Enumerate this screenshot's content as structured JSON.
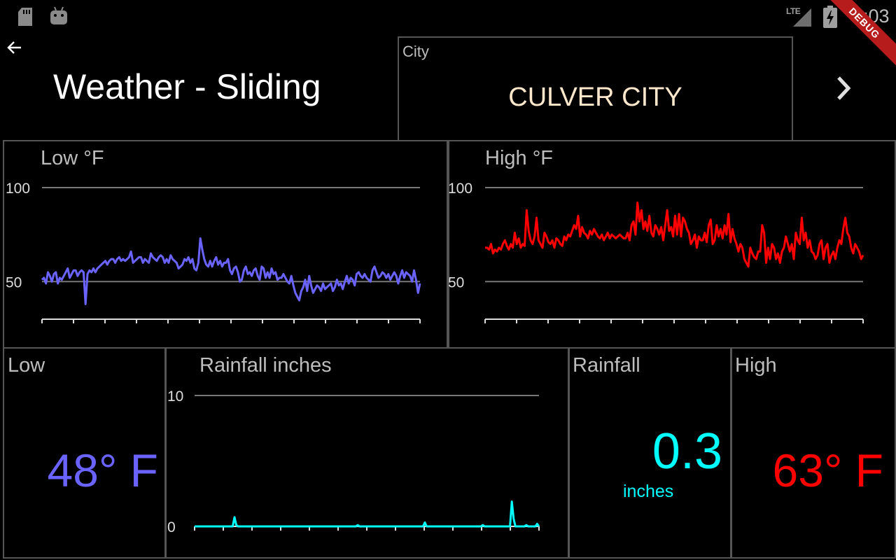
{
  "status_bar": {
    "time": "4:03",
    "network": "LTE",
    "debug": "DEBUG",
    "icons": [
      "sd-card-icon",
      "android-icon",
      "signal-icon",
      "battery-charging-icon"
    ]
  },
  "header": {
    "title": "Weather - Sliding",
    "back_icon": "arrow-left-icon",
    "next_icon": "chevron-right-icon"
  },
  "city": {
    "label": "City",
    "value": "CULVER CITY"
  },
  "summary": {
    "low": {
      "label": "Low",
      "value": "48° F",
      "color": "#6b63ff"
    },
    "rainfall": {
      "label": "Rainfall",
      "value": "0.3",
      "unit": "inches",
      "color": "#00ffff"
    },
    "high": {
      "label": "High",
      "value": "63° F",
      "color": "#ff0000"
    }
  },
  "chart_data": [
    {
      "type": "line",
      "title": "Low °F",
      "color": "#6b63ff",
      "ylim": [
        30,
        100
      ],
      "yticks": [
        100,
        50
      ],
      "grid": true,
      "values": [
        51,
        52,
        49,
        55,
        53,
        50,
        54,
        55,
        49,
        52,
        51,
        53,
        55,
        57,
        52,
        54,
        56,
        56,
        53,
        55,
        56,
        55,
        38,
        54,
        56,
        55,
        57,
        55,
        57,
        58,
        59,
        60,
        61,
        59,
        61,
        62,
        62,
        60,
        62,
        63,
        61,
        62,
        61,
        62,
        63,
        66,
        60,
        61,
        62,
        63,
        63,
        60,
        62,
        61,
        60,
        65,
        63,
        62,
        61,
        63,
        64,
        63,
        60,
        62,
        60,
        64,
        62,
        61,
        60,
        57,
        58,
        59,
        62,
        61,
        63,
        60,
        62,
        57,
        56,
        60,
        73,
        67,
        62,
        59,
        58,
        61,
        58,
        61,
        63,
        59,
        61,
        58,
        60,
        60,
        62,
        56,
        54,
        57,
        58,
        55,
        50,
        51,
        56,
        58,
        54,
        55,
        53,
        56,
        57,
        53,
        51,
        58,
        57,
        52,
        55,
        52,
        57,
        54,
        55,
        51,
        52,
        52,
        54,
        52,
        50,
        49,
        53,
        48,
        44,
        42,
        40,
        45,
        47,
        51,
        45,
        53,
        48,
        44,
        46,
        48,
        47,
        45,
        49,
        46,
        47,
        48,
        49,
        45,
        47,
        51,
        48,
        49,
        46,
        50,
        53,
        49,
        52,
        51,
        48,
        54,
        55,
        53,
        52,
        54,
        52,
        51,
        50,
        56,
        58,
        55,
        52,
        53,
        55,
        54,
        52,
        54,
        51,
        53,
        55,
        53,
        49,
        53,
        56,
        52,
        55,
        54,
        53,
        50,
        56,
        51,
        44,
        49
      ]
    },
    {
      "type": "line",
      "title": "High °F",
      "color": "#ff0000",
      "ylim": [
        30,
        100
      ],
      "yticks": [
        100,
        50
      ],
      "grid": true,
      "values": [
        68,
        68,
        67,
        70,
        65,
        67,
        66,
        68,
        67,
        70,
        72,
        69,
        67,
        70,
        68,
        76,
        70,
        73,
        68,
        70,
        69,
        88,
        77,
        72,
        70,
        74,
        84,
        72,
        70,
        68,
        76,
        74,
        71,
        70,
        72,
        68,
        73,
        72,
        70,
        69,
        74,
        72,
        75,
        74,
        77,
        80,
        78,
        85,
        74,
        79,
        76,
        75,
        73,
        77,
        75,
        78,
        76,
        74,
        73,
        75,
        72,
        74,
        76,
        73,
        75,
        74,
        73,
        74,
        75,
        74,
        73,
        73,
        76,
        72,
        80,
        82,
        75,
        92,
        82,
        88,
        78,
        82,
        77,
        85,
        76,
        74,
        80,
        78,
        75,
        79,
        72,
        80,
        88,
        77,
        79,
        74,
        85,
        75,
        86,
        74,
        84,
        82,
        78,
        76,
        70,
        72,
        75,
        68,
        74,
        72,
        72,
        76,
        71,
        80,
        83,
        70,
        72,
        80,
        74,
        78,
        73,
        80,
        75,
        86,
        71,
        78,
        73,
        70,
        66,
        70,
        68,
        62,
        60,
        58,
        68,
        65,
        63,
        62,
        66,
        66,
        80,
        76,
        60,
        68,
        62,
        70,
        68,
        62,
        65,
        60,
        66,
        68,
        74,
        70,
        66,
        70,
        62,
        76,
        72,
        70,
        84,
        72,
        76,
        68,
        72,
        66,
        65,
        62,
        64,
        70,
        72,
        62,
        68,
        70,
        60,
        64,
        66,
        62,
        68,
        72,
        70,
        78,
        84,
        76,
        74,
        68,
        65,
        70,
        68,
        66,
        62,
        64
      ]
    },
    {
      "type": "area",
      "title": "Rainfall inches",
      "color": "#00ffff",
      "ylim": [
        0,
        10
      ],
      "yticks": [
        10,
        0
      ],
      "grid": true,
      "values": [
        0,
        0,
        0,
        0,
        0,
        0,
        0,
        0,
        0,
        0,
        0,
        0,
        0,
        0,
        0,
        0,
        0,
        0,
        0,
        0,
        0,
        0,
        0.7,
        0.1,
        0,
        0,
        0,
        0,
        0,
        0,
        0,
        0,
        0,
        0,
        0,
        0,
        0,
        0,
        0,
        0,
        0,
        0,
        0,
        0,
        0,
        0,
        0,
        0,
        0,
        0,
        0,
        0,
        0,
        0,
        0,
        0,
        0,
        0,
        0,
        0,
        0,
        0,
        0,
        0,
        0,
        0,
        0,
        0,
        0,
        0,
        0,
        0,
        0,
        0,
        0,
        0,
        0,
        0,
        0,
        0,
        0,
        0,
        0,
        0,
        0,
        0,
        0,
        0,
        0,
        0,
        0.1,
        0,
        0,
        0,
        0,
        0,
        0,
        0,
        0,
        0,
        0,
        0,
        0,
        0,
        0,
        0,
        0,
        0,
        0,
        0,
        0,
        0,
        0,
        0,
        0,
        0,
        0,
        0,
        0,
        0,
        0,
        0,
        0,
        0,
        0,
        0,
        0,
        0.3,
        0,
        0,
        0,
        0,
        0,
        0,
        0,
        0,
        0,
        0,
        0,
        0,
        0,
        0,
        0,
        0,
        0,
        0,
        0,
        0,
        0,
        0,
        0,
        0,
        0,
        0,
        0,
        0,
        0,
        0,
        0,
        0.1,
        0,
        0,
        0,
        0,
        0,
        0,
        0,
        0,
        0,
        0,
        0,
        0,
        0,
        0,
        0,
        1.9,
        0.6,
        0,
        0,
        0,
        0,
        0,
        0,
        0.1,
        0,
        0,
        0,
        0,
        0,
        0.2,
        0
      ]
    }
  ]
}
